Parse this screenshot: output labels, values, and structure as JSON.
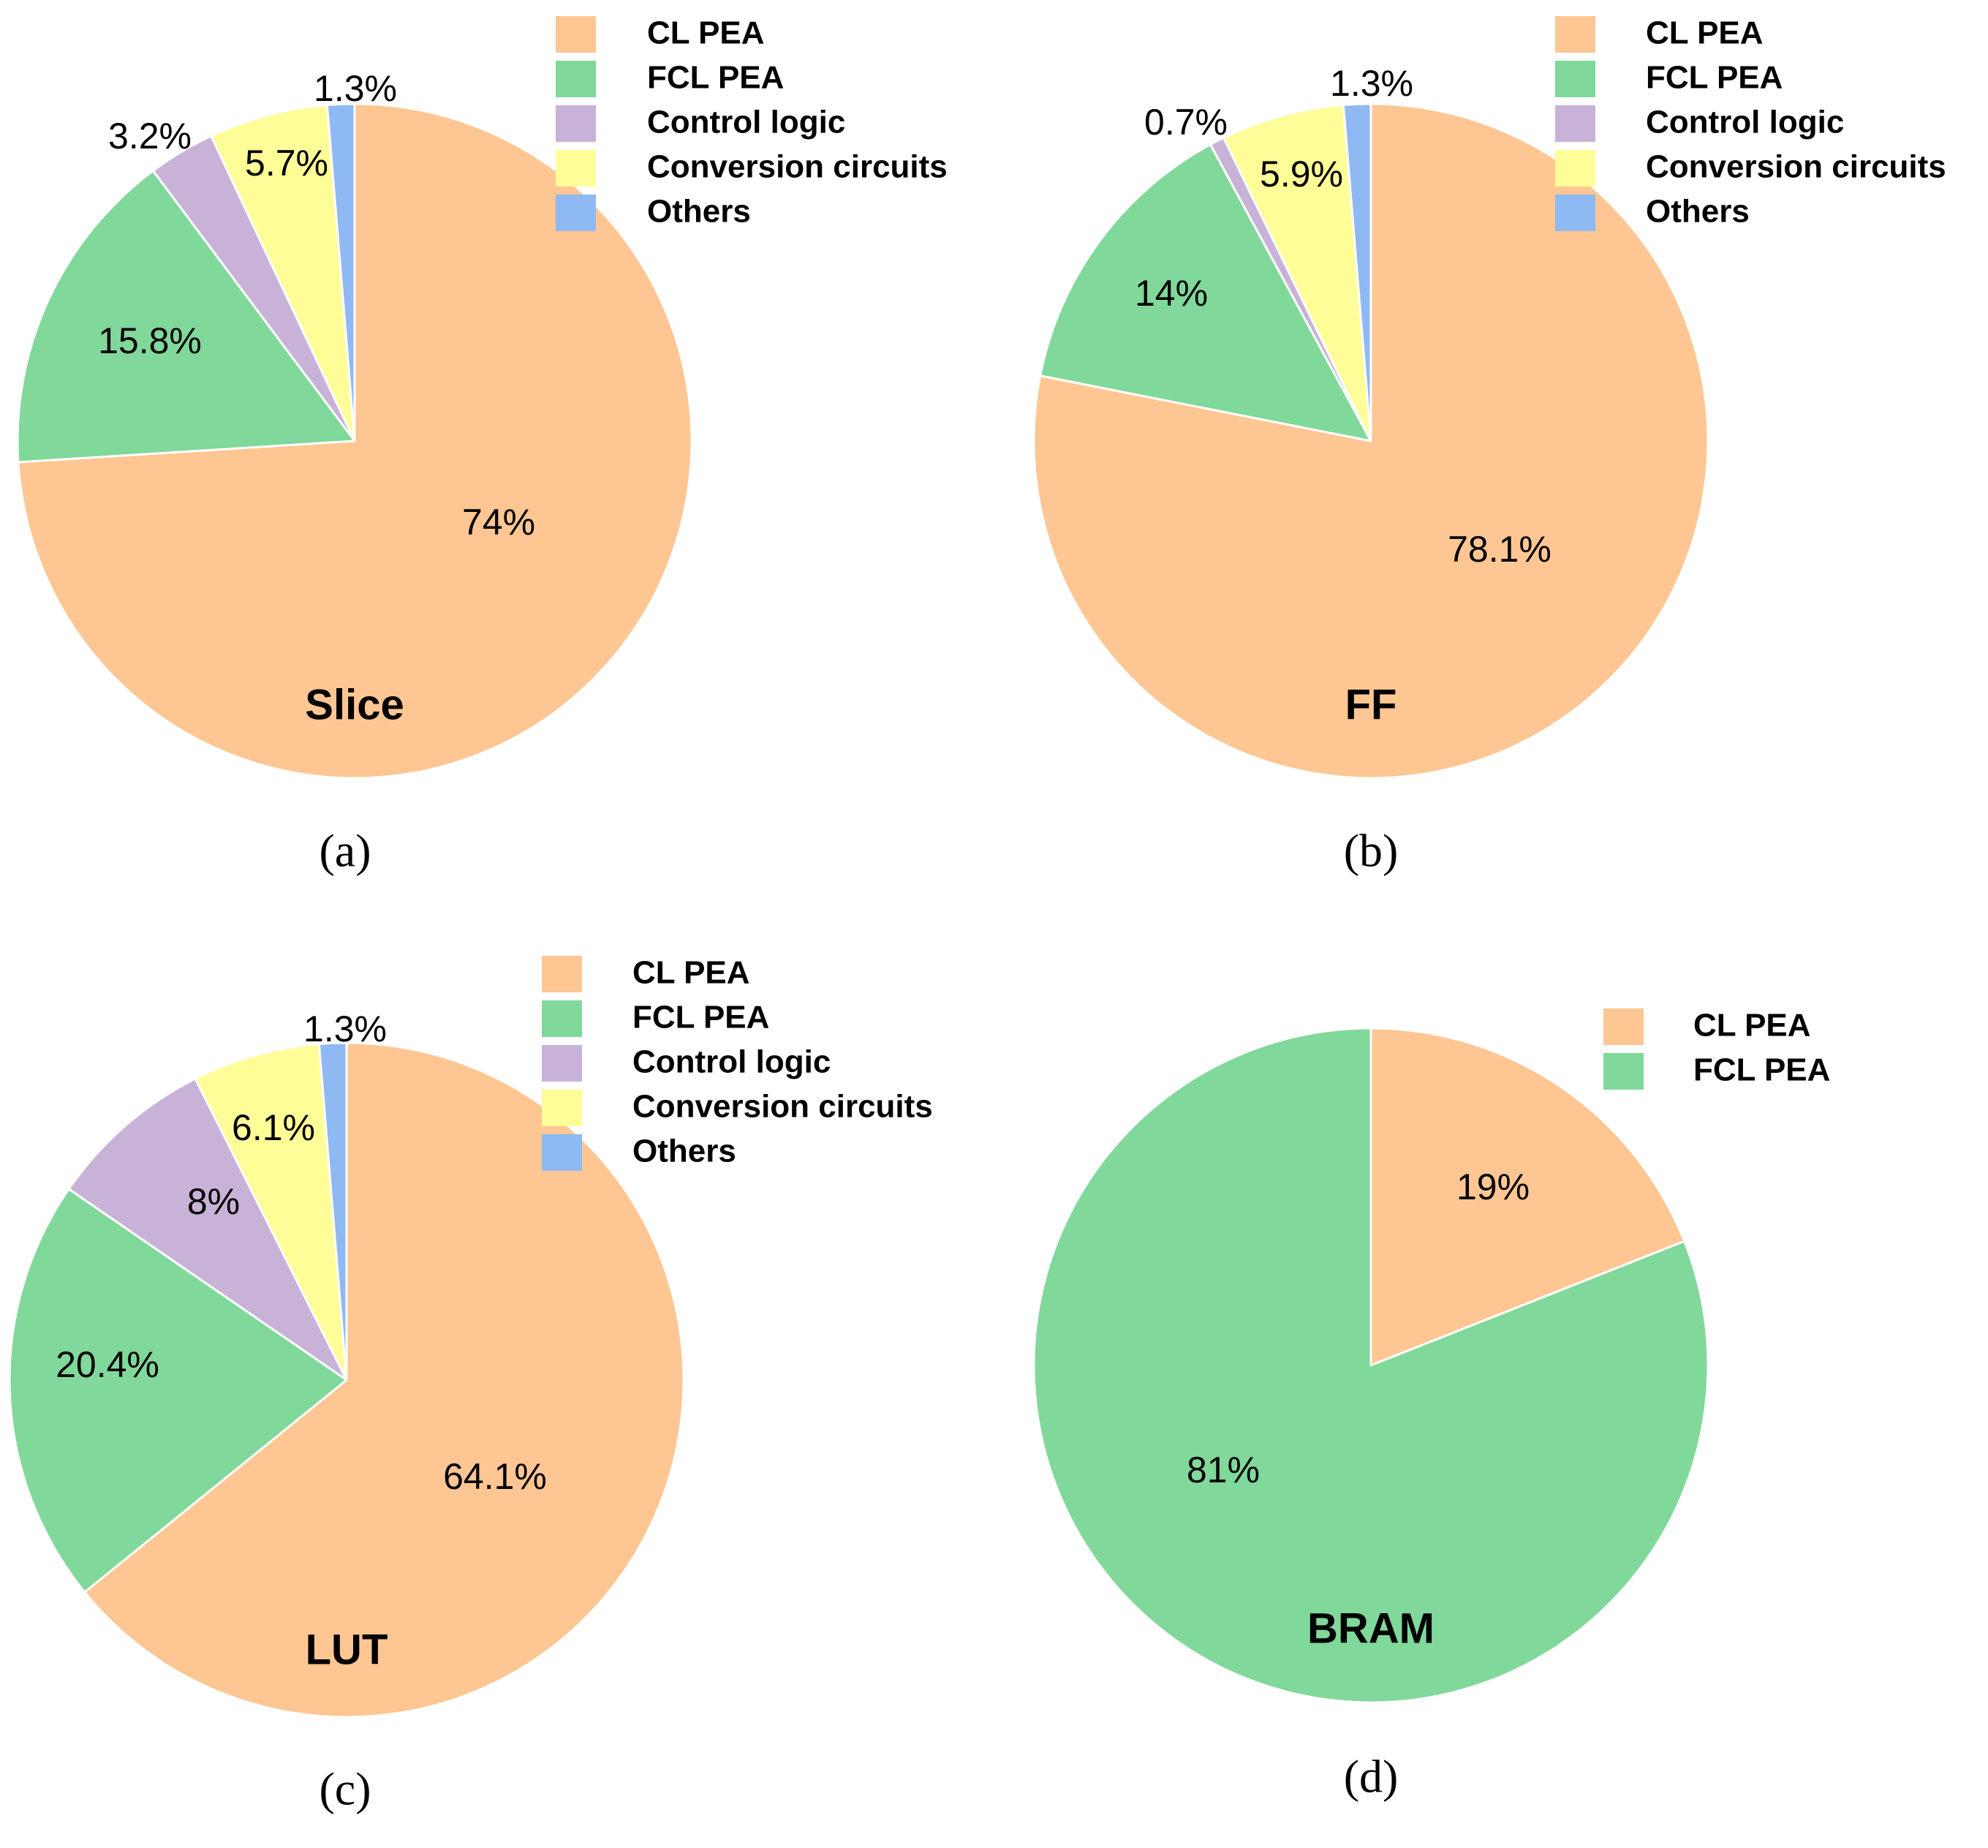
{
  "colors": {
    "CL PEA": "#fdc693",
    "FCL PEA": "#80d89b",
    "Control logic": "#c9b2d7",
    "Conversion circuits": "#fefd97",
    "Others": "#8fb9f2"
  },
  "chart_data": [
    {
      "type": "pie",
      "title": "Slice",
      "caption": "(a)",
      "labels": [
        "CL PEA",
        "FCL PEA",
        "Control logic",
        "Conversion circuits",
        "Others"
      ],
      "values": [
        74,
        15.8,
        3.2,
        5.7,
        1.3
      ],
      "value_labels": [
        "74%",
        "15.8%",
        "3.2%",
        "5.7%",
        "1.3%"
      ],
      "legend": [
        "CL PEA",
        "FCL PEA",
        "Control logic",
        "Conversion circuits",
        "Others"
      ],
      "legend_position": "top-right"
    },
    {
      "type": "pie",
      "title": "FF",
      "caption": "(b)",
      "labels": [
        "CL PEA",
        "FCL PEA",
        "Control logic",
        "Conversion circuits",
        "Others"
      ],
      "values": [
        78.1,
        14,
        0.7,
        5.9,
        1.3
      ],
      "value_labels": [
        "78.1%",
        "14%",
        "0.7%",
        "5.9%",
        "1.3%"
      ],
      "legend": [
        "CL PEA",
        "FCL PEA",
        "Control logic",
        "Conversion circuits",
        "Others"
      ],
      "legend_position": "top-right"
    },
    {
      "type": "pie",
      "title": "LUT",
      "caption": "(c)",
      "labels": [
        "CL PEA",
        "FCL PEA",
        "Control logic",
        "Conversion circuits",
        "Others"
      ],
      "values": [
        64.1,
        20.4,
        8,
        6.1,
        1.3
      ],
      "value_labels": [
        "64.1%",
        "20.4%",
        "8%",
        "6.1%",
        "1.3%"
      ],
      "legend": [
        "CL PEA",
        "FCL PEA",
        "Control logic",
        "Conversion circuits",
        "Others"
      ],
      "legend_position": "top-right"
    },
    {
      "type": "pie",
      "title": "BRAM",
      "caption": "(d)",
      "labels": [
        "CL PEA",
        "FCL PEA"
      ],
      "values": [
        19,
        81
      ],
      "value_labels": [
        "19%",
        "81%"
      ],
      "legend": [
        "CL PEA",
        "FCL PEA"
      ],
      "legend_position": "top-right"
    }
  ]
}
